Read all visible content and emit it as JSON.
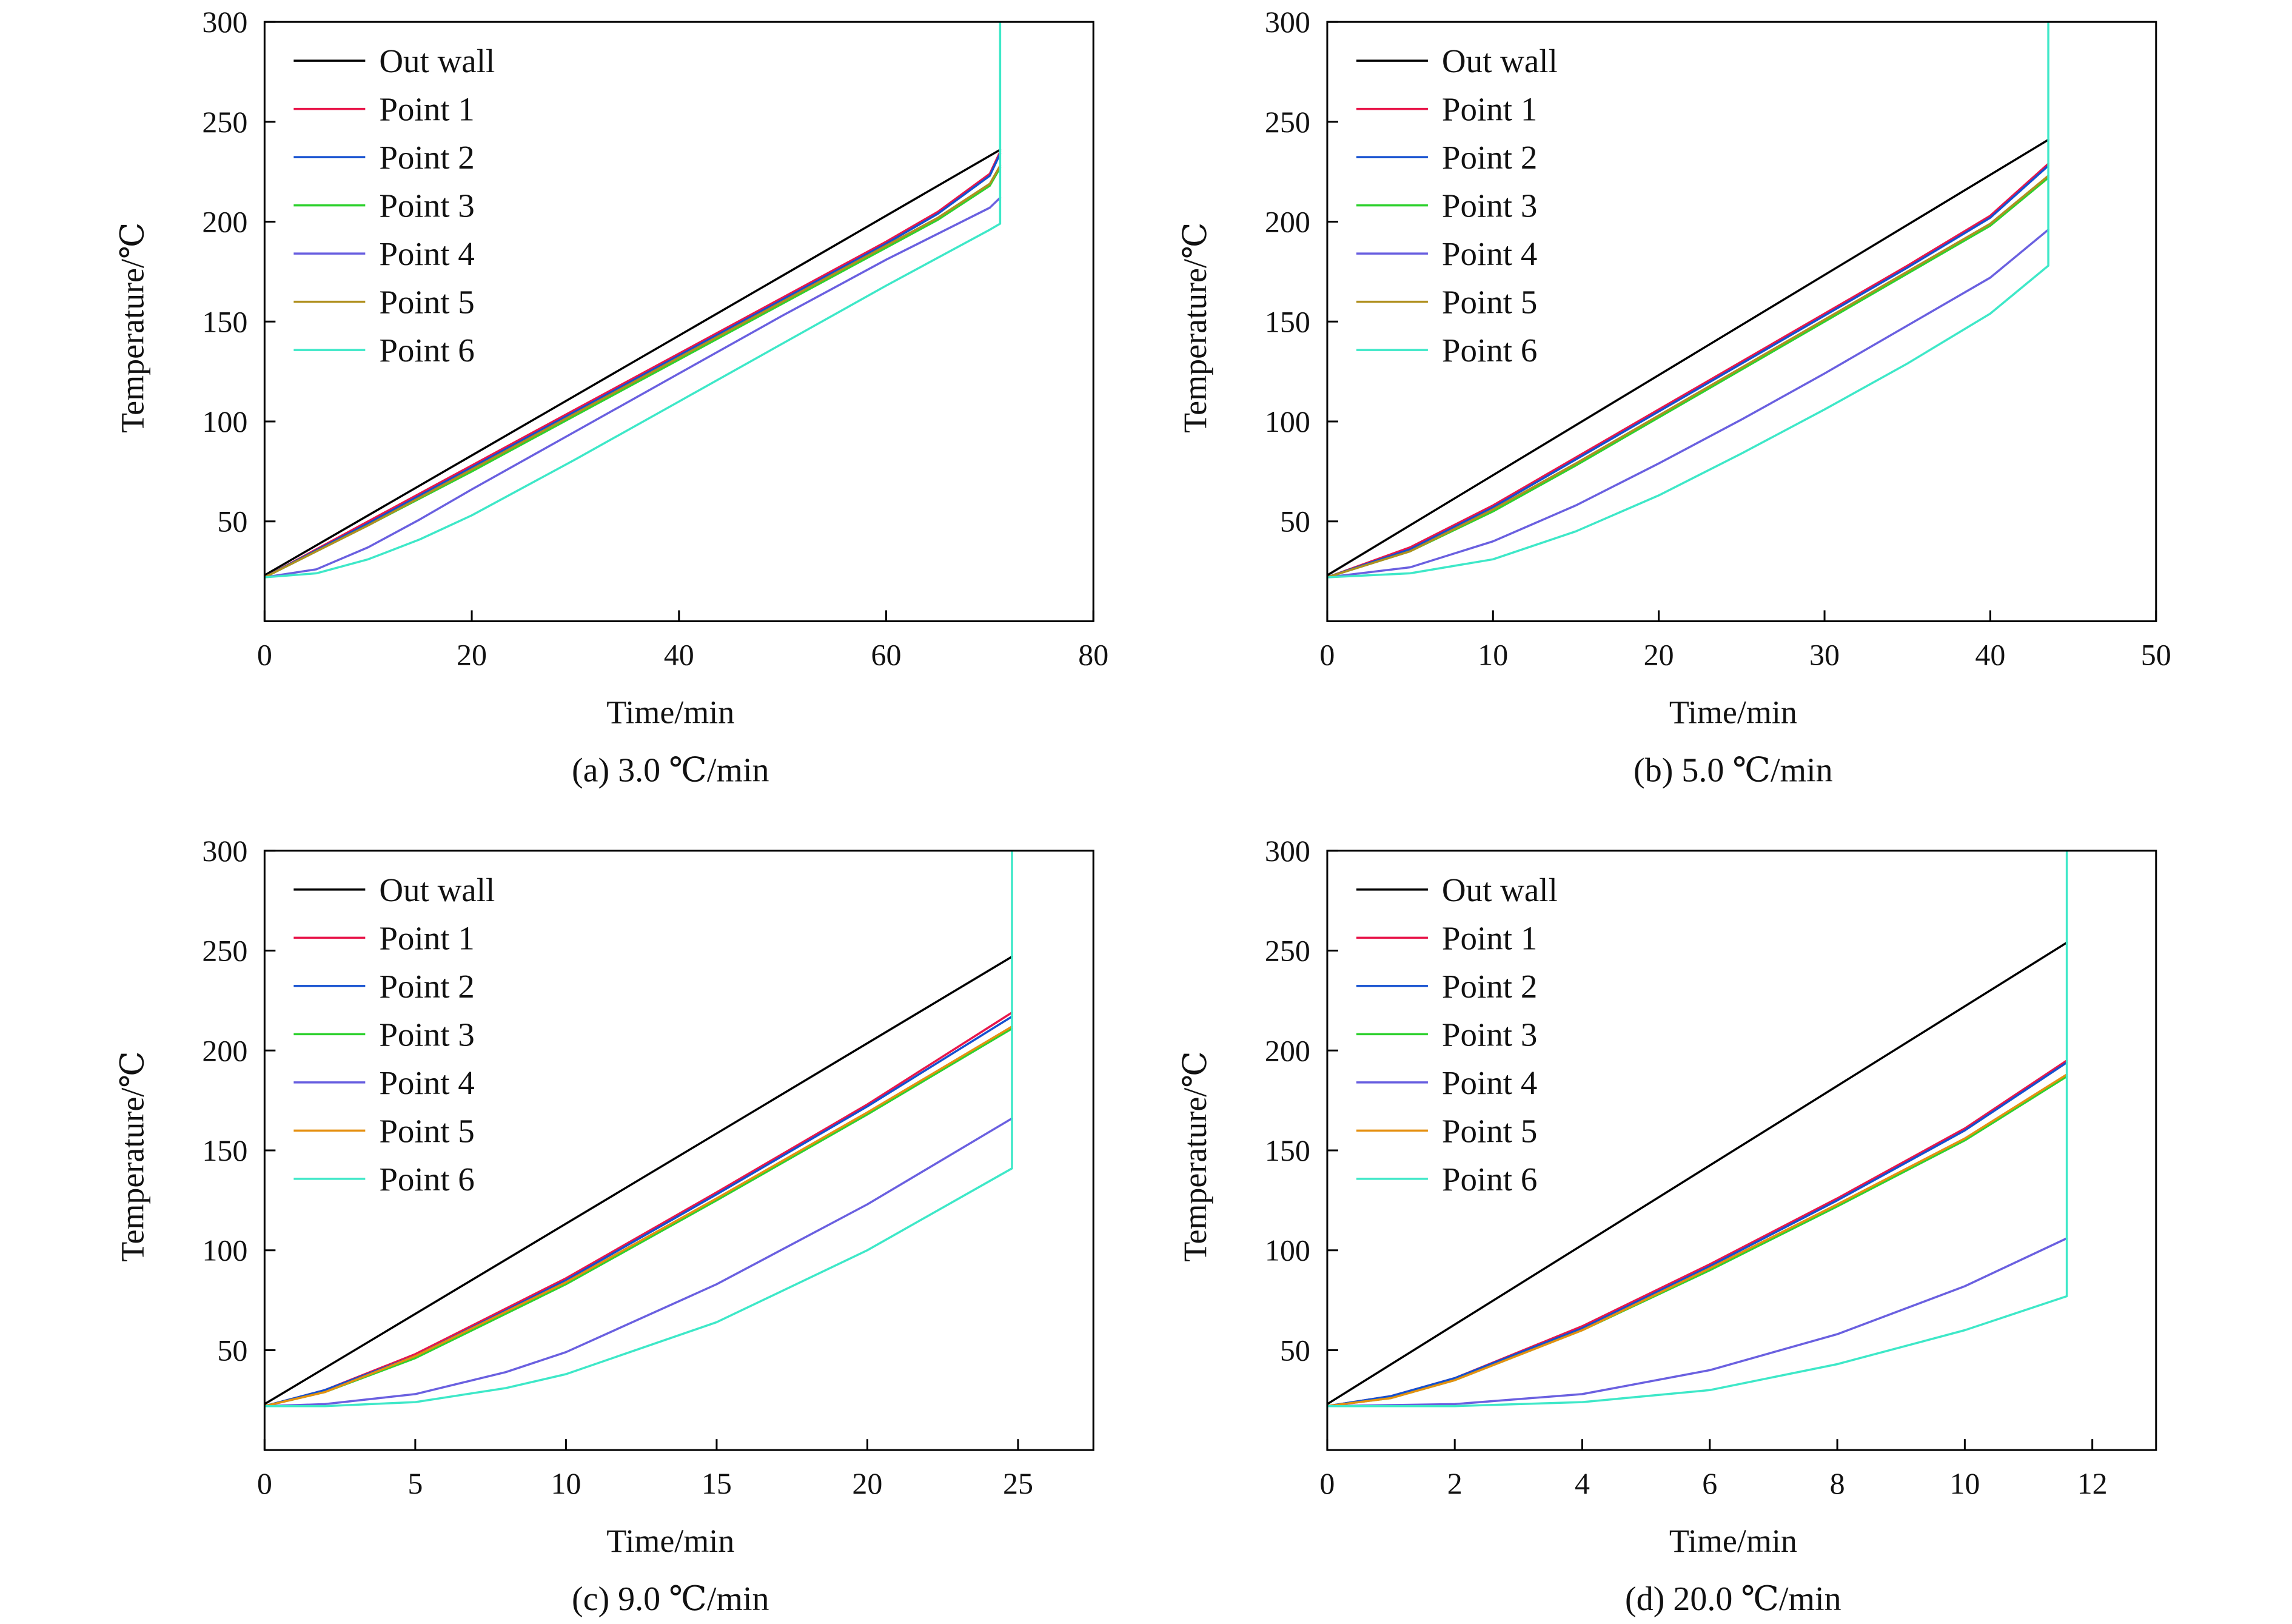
{
  "chart_data": [
    {
      "type": "line",
      "caption": "(a) 3.0 ℃/min",
      "xlabel": "Time/min",
      "ylabel": "Temperature/℃",
      "xlim": [
        0,
        80
      ],
      "ylim": [
        0,
        300
      ],
      "xticks": [
        "0",
        "20",
        "40",
        "60",
        "80"
      ],
      "yticks": [
        "50",
        "100",
        "150",
        "200",
        "250",
        "300"
      ],
      "legend_position": "top-left",
      "series": [
        {
          "name": "Out wall",
          "color": "#000000",
          "x": [
            0,
            71
          ],
          "y": [
            23,
            236
          ]
        },
        {
          "name": "Point 1",
          "color": "#e8174b",
          "x": [
            0,
            10,
            20,
            30,
            40,
            50,
            60,
            65,
            70,
            71
          ],
          "y": [
            22,
            50,
            78,
            106,
            134,
            162,
            190,
            205,
            224,
            235
          ]
        },
        {
          "name": "Point 2",
          "color": "#1450d0",
          "x": [
            0,
            10,
            20,
            30,
            40,
            50,
            60,
            65,
            70,
            71
          ],
          "y": [
            22,
            49,
            77,
            105,
            133,
            161,
            189,
            204,
            223,
            234
          ]
        },
        {
          "name": "Point 3",
          "color": "#2ed12e",
          "x": [
            0,
            10,
            20,
            30,
            40,
            50,
            60,
            65,
            70,
            71
          ],
          "y": [
            22,
            48,
            75,
            103,
            131,
            159,
            187,
            201,
            218,
            227
          ]
        },
        {
          "name": "Point 4",
          "color": "#6a60e0",
          "x": [
            0,
            5,
            10,
            15,
            20,
            30,
            40,
            50,
            60,
            70,
            71
          ],
          "y": [
            22,
            26,
            37,
            51,
            66,
            95,
            124,
            153,
            181,
            207,
            212
          ]
        },
        {
          "name": "Point 5",
          "color": "#b09020",
          "x": [
            0,
            10,
            20,
            30,
            40,
            50,
            60,
            65,
            70,
            71
          ],
          "y": [
            22,
            48,
            76,
            104,
            132,
            160,
            188,
            202,
            219,
            228
          ]
        },
        {
          "name": "Point 6",
          "color": "#3ee8c8",
          "x": [
            0,
            5,
            10,
            15,
            20,
            30,
            40,
            50,
            60,
            70,
            71,
            71,
            71
          ],
          "y": [
            22,
            24,
            31,
            41,
            53,
            81,
            110,
            139,
            168,
            196,
            199,
            199,
            300
          ]
        }
      ]
    },
    {
      "type": "line",
      "caption": "(b) 5.0 ℃/min",
      "xlabel": "Time/min",
      "ylabel": "Temperature/℃",
      "xlim": [
        0,
        50
      ],
      "ylim": [
        0,
        300
      ],
      "xticks": [
        "0",
        "10",
        "20",
        "30",
        "40",
        "50"
      ],
      "yticks": [
        "50",
        "100",
        "150",
        "200",
        "250",
        "300"
      ],
      "legend_position": "top-left",
      "series": [
        {
          "name": "Out wall",
          "color": "#000000",
          "x": [
            0,
            43.5
          ],
          "y": [
            23,
            241
          ]
        },
        {
          "name": "Point 1",
          "color": "#e8174b",
          "x": [
            0,
            5,
            10,
            15,
            20,
            25,
            30,
            35,
            40,
            43.5
          ],
          "y": [
            22,
            37,
            58,
            82,
            106,
            130,
            154,
            178,
            203,
            229
          ]
        },
        {
          "name": "Point 2",
          "color": "#1450d0",
          "x": [
            0,
            5,
            10,
            15,
            20,
            25,
            30,
            35,
            40,
            43.5
          ],
          "y": [
            22,
            36,
            57,
            81,
            105,
            129,
            153,
            177,
            202,
            228
          ]
        },
        {
          "name": "Point 3",
          "color": "#2ed12e",
          "x": [
            0,
            5,
            10,
            15,
            20,
            25,
            30,
            35,
            40,
            43.5
          ],
          "y": [
            22,
            35,
            55,
            78,
            102,
            126,
            150,
            174,
            198,
            222
          ]
        },
        {
          "name": "Point 4",
          "color": "#6a60e0",
          "x": [
            0,
            5,
            10,
            15,
            20,
            25,
            30,
            35,
            40,
            43.5
          ],
          "y": [
            22,
            27,
            40,
            58,
            79,
            101,
            124,
            148,
            172,
            196
          ]
        },
        {
          "name": "Point 5",
          "color": "#b09020",
          "x": [
            0,
            5,
            10,
            15,
            20,
            25,
            30,
            35,
            40,
            43.5
          ],
          "y": [
            22,
            35,
            56,
            79,
            103,
            127,
            151,
            175,
            199,
            223
          ]
        },
        {
          "name": "Point 6",
          "color": "#3ee8c8",
          "x": [
            0,
            5,
            10,
            15,
            20,
            25,
            30,
            35,
            40,
            43.5,
            43.5
          ],
          "y": [
            22,
            24,
            31,
            45,
            63,
            84,
            106,
            129,
            154,
            178,
            300
          ]
        }
      ]
    },
    {
      "type": "line",
      "caption": "(c) 9.0 ℃/min",
      "xlabel": "Time/min",
      "ylabel": "Temperature/℃",
      "xlim": [
        0,
        27.5
      ],
      "ylim": [
        0,
        300
      ],
      "xticks": [
        "0",
        "5",
        "10",
        "15",
        "20",
        "25"
      ],
      "yticks": [
        "50",
        "100",
        "150",
        "200",
        "250",
        "300"
      ],
      "legend_position": "top-left",
      "series": [
        {
          "name": "Out wall",
          "color": "#000000",
          "x": [
            0,
            24.8
          ],
          "y": [
            23,
            247
          ]
        },
        {
          "name": "Point 1",
          "color": "#e8174b",
          "x": [
            0,
            2,
            5,
            10,
            15,
            20,
            24.8
          ],
          "y": [
            22,
            30,
            48,
            86,
            129,
            173,
            219
          ]
        },
        {
          "name": "Point 2",
          "color": "#1450d0",
          "x": [
            0,
            2,
            5,
            10,
            15,
            20,
            24.8
          ],
          "y": [
            22,
            30,
            47,
            85,
            128,
            172,
            217
          ]
        },
        {
          "name": "Point 3",
          "color": "#2ed12e",
          "x": [
            0,
            2,
            5,
            10,
            15,
            20,
            24.8
          ],
          "y": [
            22,
            29,
            46,
            83,
            125,
            168,
            211
          ]
        },
        {
          "name": "Point 4",
          "color": "#6a60e0",
          "x": [
            0,
            2,
            5,
            8,
            10,
            15,
            20,
            24.8
          ],
          "y": [
            22,
            23,
            28,
            39,
            49,
            83,
            123,
            166
          ]
        },
        {
          "name": "Point 5",
          "color": "#e59010",
          "x": [
            0,
            2,
            5,
            10,
            15,
            20,
            24.8
          ],
          "y": [
            22,
            29,
            47,
            84,
            126,
            169,
            212
          ]
        },
        {
          "name": "Point 6",
          "color": "#3ee8c8",
          "x": [
            0,
            2,
            5,
            8,
            10,
            15,
            20,
            24.8,
            24.8
          ],
          "y": [
            22,
            22,
            24,
            31,
            38,
            64,
            100,
            141,
            300
          ]
        }
      ]
    },
    {
      "type": "line",
      "caption": "(d) 20.0 ℃/min",
      "xlabel": "Time/min",
      "ylabel": "Temperature/℃",
      "xlim": [
        0,
        13
      ],
      "ylim": [
        0,
        300
      ],
      "xticks": [
        "0",
        "2",
        "4",
        "6",
        "8",
        "10",
        "12"
      ],
      "yticks": [
        "50",
        "100",
        "150",
        "200",
        "250",
        "300"
      ],
      "legend_position": "top-left",
      "series": [
        {
          "name": "Out wall",
          "color": "#000000",
          "x": [
            0,
            11.6
          ],
          "y": [
            23,
            254
          ]
        },
        {
          "name": "Point 1",
          "color": "#e8174b",
          "x": [
            0,
            1,
            2,
            4,
            6,
            8,
            10,
            11.6
          ],
          "y": [
            22,
            27,
            36,
            62,
            93,
            126,
            161,
            195
          ]
        },
        {
          "name": "Point 2",
          "color": "#1450d0",
          "x": [
            0,
            1,
            2,
            4,
            6,
            8,
            10,
            11.6
          ],
          "y": [
            22,
            27,
            36,
            61,
            92,
            125,
            160,
            194
          ]
        },
        {
          "name": "Point 3",
          "color": "#2ed12e",
          "x": [
            0,
            1,
            2,
            4,
            6,
            8,
            10,
            11.6
          ],
          "y": [
            22,
            26,
            35,
            60,
            90,
            122,
            155,
            187
          ]
        },
        {
          "name": "Point 4",
          "color": "#6a60e0",
          "x": [
            0,
            2,
            4,
            6,
            8,
            10,
            11.6
          ],
          "y": [
            22,
            23,
            28,
            40,
            58,
            82,
            106
          ]
        },
        {
          "name": "Point 5",
          "color": "#e59010",
          "x": [
            0,
            1,
            2,
            4,
            6,
            8,
            10,
            11.6
          ],
          "y": [
            22,
            26,
            35,
            60,
            91,
            123,
            156,
            188
          ]
        },
        {
          "name": "Point 6",
          "color": "#3ee8c8",
          "x": [
            0,
            2,
            4,
            6,
            8,
            10,
            11.6,
            11.6
          ],
          "y": [
            22,
            22,
            24,
            30,
            43,
            60,
            77,
            300
          ]
        }
      ]
    }
  ]
}
